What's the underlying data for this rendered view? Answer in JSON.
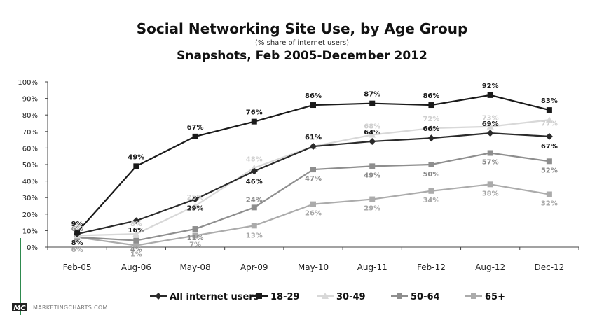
{
  "chart_data": {
    "type": "line",
    "title": "Social Networking Site Use, by Age Group",
    "subtitle": "(% share of internet users)",
    "subtitle2": "Snapshots, Feb 2005-December 2012",
    "categories": [
      "Feb-05",
      "Aug-06",
      "May-08",
      "Apr-09",
      "May-10",
      "Aug-11",
      "Feb-12",
      "Aug-12",
      "Dec-12"
    ],
    "ylim": [
      0,
      100
    ],
    "yticks": [
      "0%",
      "10%",
      "20%",
      "30%",
      "40%",
      "50%",
      "60%",
      "70%",
      "80%",
      "90%",
      "100%"
    ],
    "grid": false,
    "legend_position": "bottom",
    "series": [
      {
        "name": "All internet users",
        "values": [
          8,
          16,
          29,
          46,
          61,
          64,
          66,
          69,
          67
        ],
        "labels": [
          "8%",
          "16%",
          "29%",
          "46%",
          "61%",
          "64%",
          "66%",
          "69%",
          "67%"
        ],
        "color": "#2a2a2a",
        "marker": "diamond"
      },
      {
        "name": "18-29",
        "values": [
          9,
          49,
          67,
          76,
          86,
          87,
          86,
          92,
          83
        ],
        "labels": [
          "9%",
          "49%",
          "67%",
          "76%",
          "86%",
          "87%",
          "86%",
          "92%",
          "83%"
        ],
        "color": "#1a1a1a",
        "marker": "square"
      },
      {
        "name": "30-49",
        "values": [
          7,
          8,
          25,
          48,
          61,
          68,
          72,
          73,
          77
        ],
        "labels": [
          "7%",
          "8%",
          "25%",
          "48%",
          "61%",
          "68%",
          "72%",
          "73%",
          "77%"
        ],
        "color": "#d8d8d8",
        "marker": "triangle"
      },
      {
        "name": "50-64",
        "values": [
          6,
          4,
          11,
          24,
          47,
          49,
          50,
          57,
          52
        ],
        "labels": [
          "6%",
          "4%",
          "11%",
          "24%",
          "47%",
          "49%",
          "50%",
          "57%",
          "52%"
        ],
        "color": "#8e8e8e",
        "marker": "square"
      },
      {
        "name": "65+",
        "values": [
          6,
          1,
          7,
          13,
          26,
          29,
          34,
          38,
          32
        ],
        "labels": [
          "6%",
          "1%",
          "7%",
          "13%",
          "26%",
          "29%",
          "34%",
          "38%",
          "32%"
        ],
        "color": "#ababab",
        "marker": "square"
      }
    ]
  },
  "branding": {
    "logo": "MC",
    "site": "MARKETINGCHARTS.COM"
  }
}
